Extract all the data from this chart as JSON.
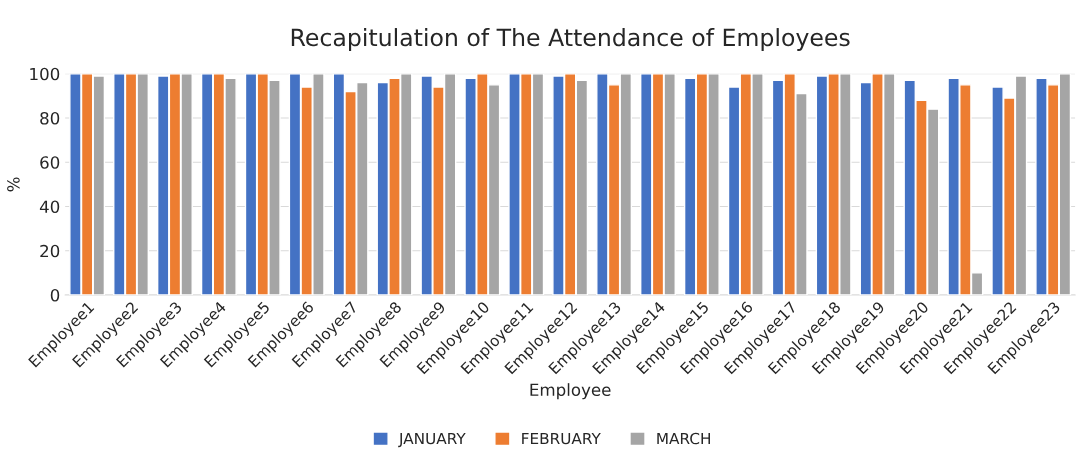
{
  "chart_data": {
    "type": "bar",
    "title": "Recapitulation of The Attendance of Employees",
    "xlabel": "Employee",
    "ylabel": "%",
    "categories": [
      "Employee1",
      "Employee2",
      "Employee3",
      "Employee4",
      "Employee5",
      "Employee6",
      "Employee7",
      "Employee8",
      "Employee9",
      "Employee10",
      "Employee11",
      "Employee12",
      "Employee13",
      "Employee14",
      "Employee15",
      "Employee16",
      "Employee17",
      "Employee18",
      "Employee19",
      "Employee20",
      "Employee21",
      "Employee22",
      "Employee23"
    ],
    "series": [
      {
        "name": "JANUARY",
        "color": "#4472c4",
        "values": [
          100,
          100,
          99,
          100,
          100,
          100,
          100,
          96,
          99,
          98,
          100,
          99,
          100,
          100,
          98,
          94,
          97,
          99,
          96,
          97,
          98,
          94,
          98
        ]
      },
      {
        "name": "FEBRUARY",
        "color": "#ed7d31",
        "values": [
          100,
          100,
          100,
          100,
          100,
          94,
          92,
          98,
          94,
          100,
          100,
          100,
          95,
          100,
          100,
          100,
          100,
          100,
          100,
          88,
          95,
          89,
          95
        ]
      },
      {
        "name": "MARCH",
        "color": "#a5a5a5",
        "values": [
          99,
          100,
          100,
          98,
          97,
          100,
          96,
          100,
          100,
          95,
          100,
          97,
          100,
          100,
          100,
          100,
          91,
          100,
          100,
          84,
          10,
          99,
          100
        ]
      }
    ],
    "ylim": [
      0,
      100
    ],
    "yticks": [
      0,
      20,
      40,
      60,
      80,
      100
    ],
    "grid": "y",
    "legend": "bottom"
  }
}
